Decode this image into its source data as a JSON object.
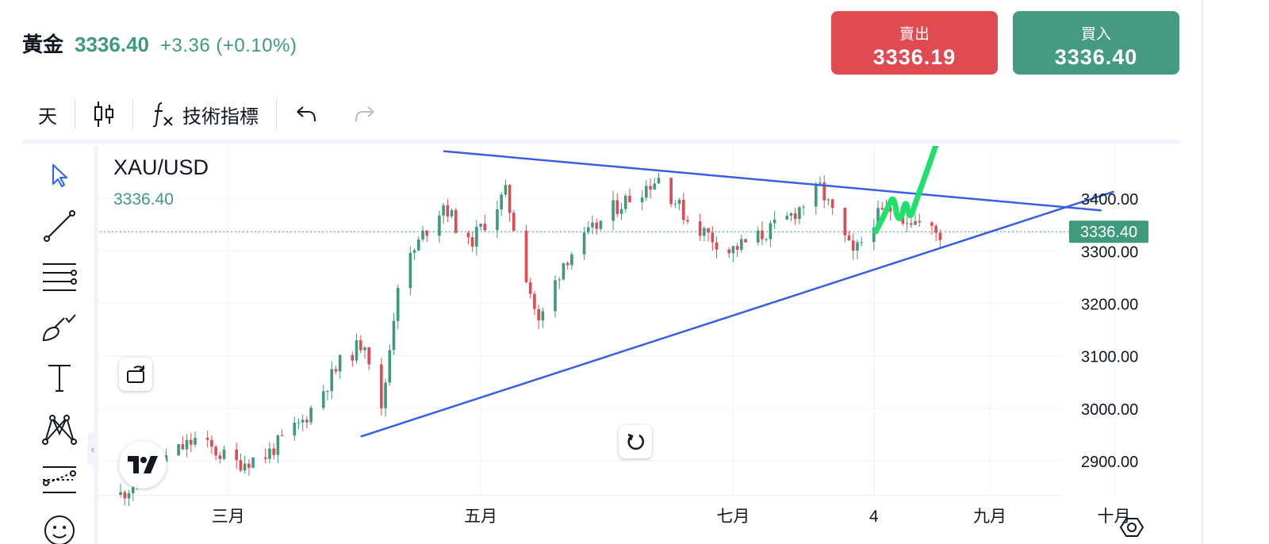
{
  "header": {
    "symbol": "黃金",
    "price": "3336.40",
    "change": "+3.36 (+0.10%)"
  },
  "trade": {
    "sell_label": "賣出",
    "sell_price": "3336.19",
    "buy_label": "買入",
    "buy_price": "3336.40"
  },
  "toolbar": {
    "interval_label": "天",
    "indicators_label": "技術指標"
  },
  "colors": {
    "up": "#3f9a7c",
    "down": "#e04a51",
    "trendline": "#3a5ee5",
    "arrow": "#1fe06a",
    "accent": "#2962ff"
  },
  "chart_data": {
    "type": "candlestick",
    "symbol_label": "XAU/USD",
    "last_price_label": "3336.40",
    "last_price": 3336.4,
    "ylim": [
      2835,
      3500
    ],
    "y_ticks": [
      "3400.00",
      "3300.00",
      "3200.00",
      "3100.00",
      "3000.00",
      "2900.00"
    ],
    "y_tick_values": [
      3400,
      3300,
      3200,
      3100,
      3000,
      2900
    ],
    "x_tick_labels": [
      "三月",
      "五月",
      "七月",
      "4",
      "九月",
      "十月"
    ],
    "x_tick_dates": [
      "2025-03-01",
      "2025-05-01",
      "2025-07-01",
      "2025-08-04",
      "2025-09-01",
      "2025-10-01"
    ],
    "xlim": [
      "2025-01-29",
      "2025-10-17"
    ],
    "grid": true,
    "anchor_dates": [
      "2025-02-03",
      "2025-02-12",
      "2025-02-21",
      "2025-03-03",
      "2025-03-10",
      "2025-03-19",
      "2025-03-28",
      "2025-04-03",
      "2025-04-07",
      "2025-04-11",
      "2025-04-17",
      "2025-04-22",
      "2025-04-28",
      "2025-05-07",
      "2025-05-15",
      "2025-05-21",
      "2025-06-02",
      "2025-06-13",
      "2025-06-20",
      "2025-06-30",
      "2025-07-08",
      "2025-07-14",
      "2025-07-22",
      "2025-07-30",
      "2025-08-04",
      "2025-08-08",
      "2025-08-13",
      "2025-08-20"
    ],
    "anchor_closes": [
      2835,
      2895,
      2940,
      2895,
      2910,
      2975,
      3085,
      3130,
      2990,
      3240,
      3330,
      3390,
      3310,
      3410,
      3160,
      3280,
      3380,
      3440,
      3360,
      3300,
      3330,
      3360,
      3420,
      3290,
      3360,
      3380,
      3360,
      3330
    ],
    "trendlines": [
      {
        "from": {
          "date": "2025-04-22",
          "price": 3490
        },
        "to": {
          "date": "2025-09-28",
          "price": 3377
        }
      },
      {
        "from": {
          "date": "2025-04-02",
          "price": 2946
        },
        "to": {
          "date": "2025-10-01",
          "price": 3413
        }
      }
    ],
    "annotation_arrow": "hand-drawn-up-arrow"
  }
}
